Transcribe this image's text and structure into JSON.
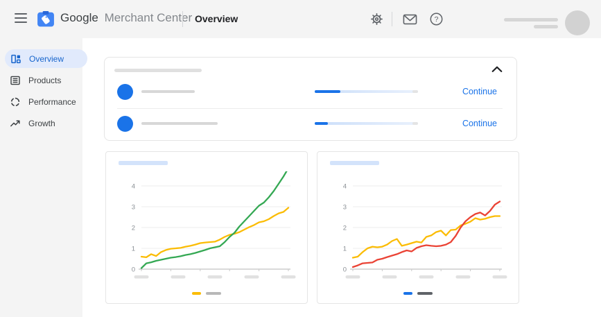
{
  "header": {
    "menu_icon": "hamburger-icon",
    "logo_icon": "merchant-center-logo",
    "brand_google": "Google",
    "brand_product": "Merchant Center",
    "page_title": "Overview",
    "action_icons": [
      "settings-gear-icon",
      "mail-icon",
      "help-icon"
    ],
    "help_glyph": "?",
    "account_placeholder": "avatar-and-name-skeleton"
  },
  "sidebar": {
    "items": [
      {
        "label": "Overview",
        "icon": "overview-grid-icon",
        "selected": true
      },
      {
        "label": "Products",
        "icon": "products-list-icon",
        "selected": false
      },
      {
        "label": "Performance",
        "icon": "performance-donut-icon",
        "selected": false
      },
      {
        "label": "Growth",
        "icon": "growth-trend-icon",
        "selected": false
      }
    ]
  },
  "tasks_card": {
    "title": "skeleton-bar",
    "collapse_icon": "chevron-up-icon",
    "rows": [
      {
        "icon": "blue-circle-badge",
        "label": "skeleton-bar",
        "progress_percent": 25,
        "action_label": "Continue"
      },
      {
        "icon": "blue-circle-badge",
        "label": "skeleton-bar",
        "progress_percent": 13,
        "action_label": "Continue"
      }
    ]
  },
  "colors": {
    "accent_blue": "#1a73e8",
    "chrome_gray": "#f4f4f4",
    "selected_pill": "#e1eafc",
    "green": "#34a853",
    "yellow": "#fbbc04",
    "red": "#ea4335",
    "grid": "#ececec",
    "axis": "#b3b3b3"
  },
  "chart_data": [
    {
      "type": "line",
      "title": "",
      "title_placeholder": true,
      "xlabel": "",
      "ylabel": "",
      "yticks": [
        0,
        1,
        2,
        3,
        4
      ],
      "ylim": [
        0,
        5
      ],
      "x_tick_labels": "five-skeleton-bars",
      "legend_position": "bottom-center",
      "legend": {
        "swatch_color": "#fbbc04",
        "label_color": "#b8b8b8"
      },
      "series": [
        {
          "name": "yellow-series",
          "color": "#fbbc04",
          "values": [
            0.6,
            0.57,
            0.72,
            0.63,
            0.82,
            0.92,
            0.98,
            1.0,
            1.02,
            1.08,
            1.12,
            1.18,
            1.25,
            1.28,
            1.3,
            1.32,
            1.42,
            1.55,
            1.65,
            1.7,
            1.78,
            1.9,
            2.02,
            2.12,
            2.25,
            2.3,
            2.4,
            2.55,
            2.68,
            2.75,
            2.95
          ]
        },
        {
          "name": "green-series",
          "color": "#34a853",
          "values": [
            0.05,
            0.28,
            0.33,
            0.4,
            0.45,
            0.5,
            0.55,
            0.58,
            0.62,
            0.68,
            0.72,
            0.78,
            0.85,
            0.92,
            1.0,
            1.05,
            1.1,
            1.3,
            1.55,
            1.75,
            2.05,
            2.3,
            2.55,
            2.8,
            3.05,
            3.2,
            3.45,
            3.75,
            4.1,
            4.45,
            4.85
          ]
        }
      ]
    },
    {
      "type": "line",
      "title": "",
      "title_placeholder": true,
      "xlabel": "",
      "ylabel": "",
      "yticks": [
        0,
        1,
        2,
        3,
        4
      ],
      "ylim": [
        0,
        5
      ],
      "x_tick_labels": "five-skeleton-bars",
      "legend_position": "bottom-center",
      "legend": {
        "swatch_color": "#1a73e8",
        "label_color": "#5f6368"
      },
      "series": [
        {
          "name": "yellow-series",
          "color": "#fbbc04",
          "values": [
            0.55,
            0.6,
            0.82,
            1.0,
            1.08,
            1.05,
            1.08,
            1.18,
            1.35,
            1.45,
            1.12,
            1.18,
            1.25,
            1.32,
            1.28,
            1.55,
            1.62,
            1.78,
            1.85,
            1.62,
            1.88,
            1.9,
            2.1,
            2.18,
            2.28,
            2.45,
            2.38,
            2.42,
            2.5,
            2.55,
            2.55
          ]
        },
        {
          "name": "red-series",
          "color": "#ea4335",
          "values": [
            0.1,
            0.18,
            0.28,
            0.3,
            0.32,
            0.45,
            0.5,
            0.58,
            0.65,
            0.72,
            0.82,
            0.9,
            0.85,
            1.02,
            1.1,
            1.15,
            1.12,
            1.1,
            1.12,
            1.18,
            1.3,
            1.6,
            2.0,
            2.3,
            2.5,
            2.65,
            2.72,
            2.58,
            2.8,
            3.1,
            3.25
          ]
        }
      ]
    }
  ]
}
